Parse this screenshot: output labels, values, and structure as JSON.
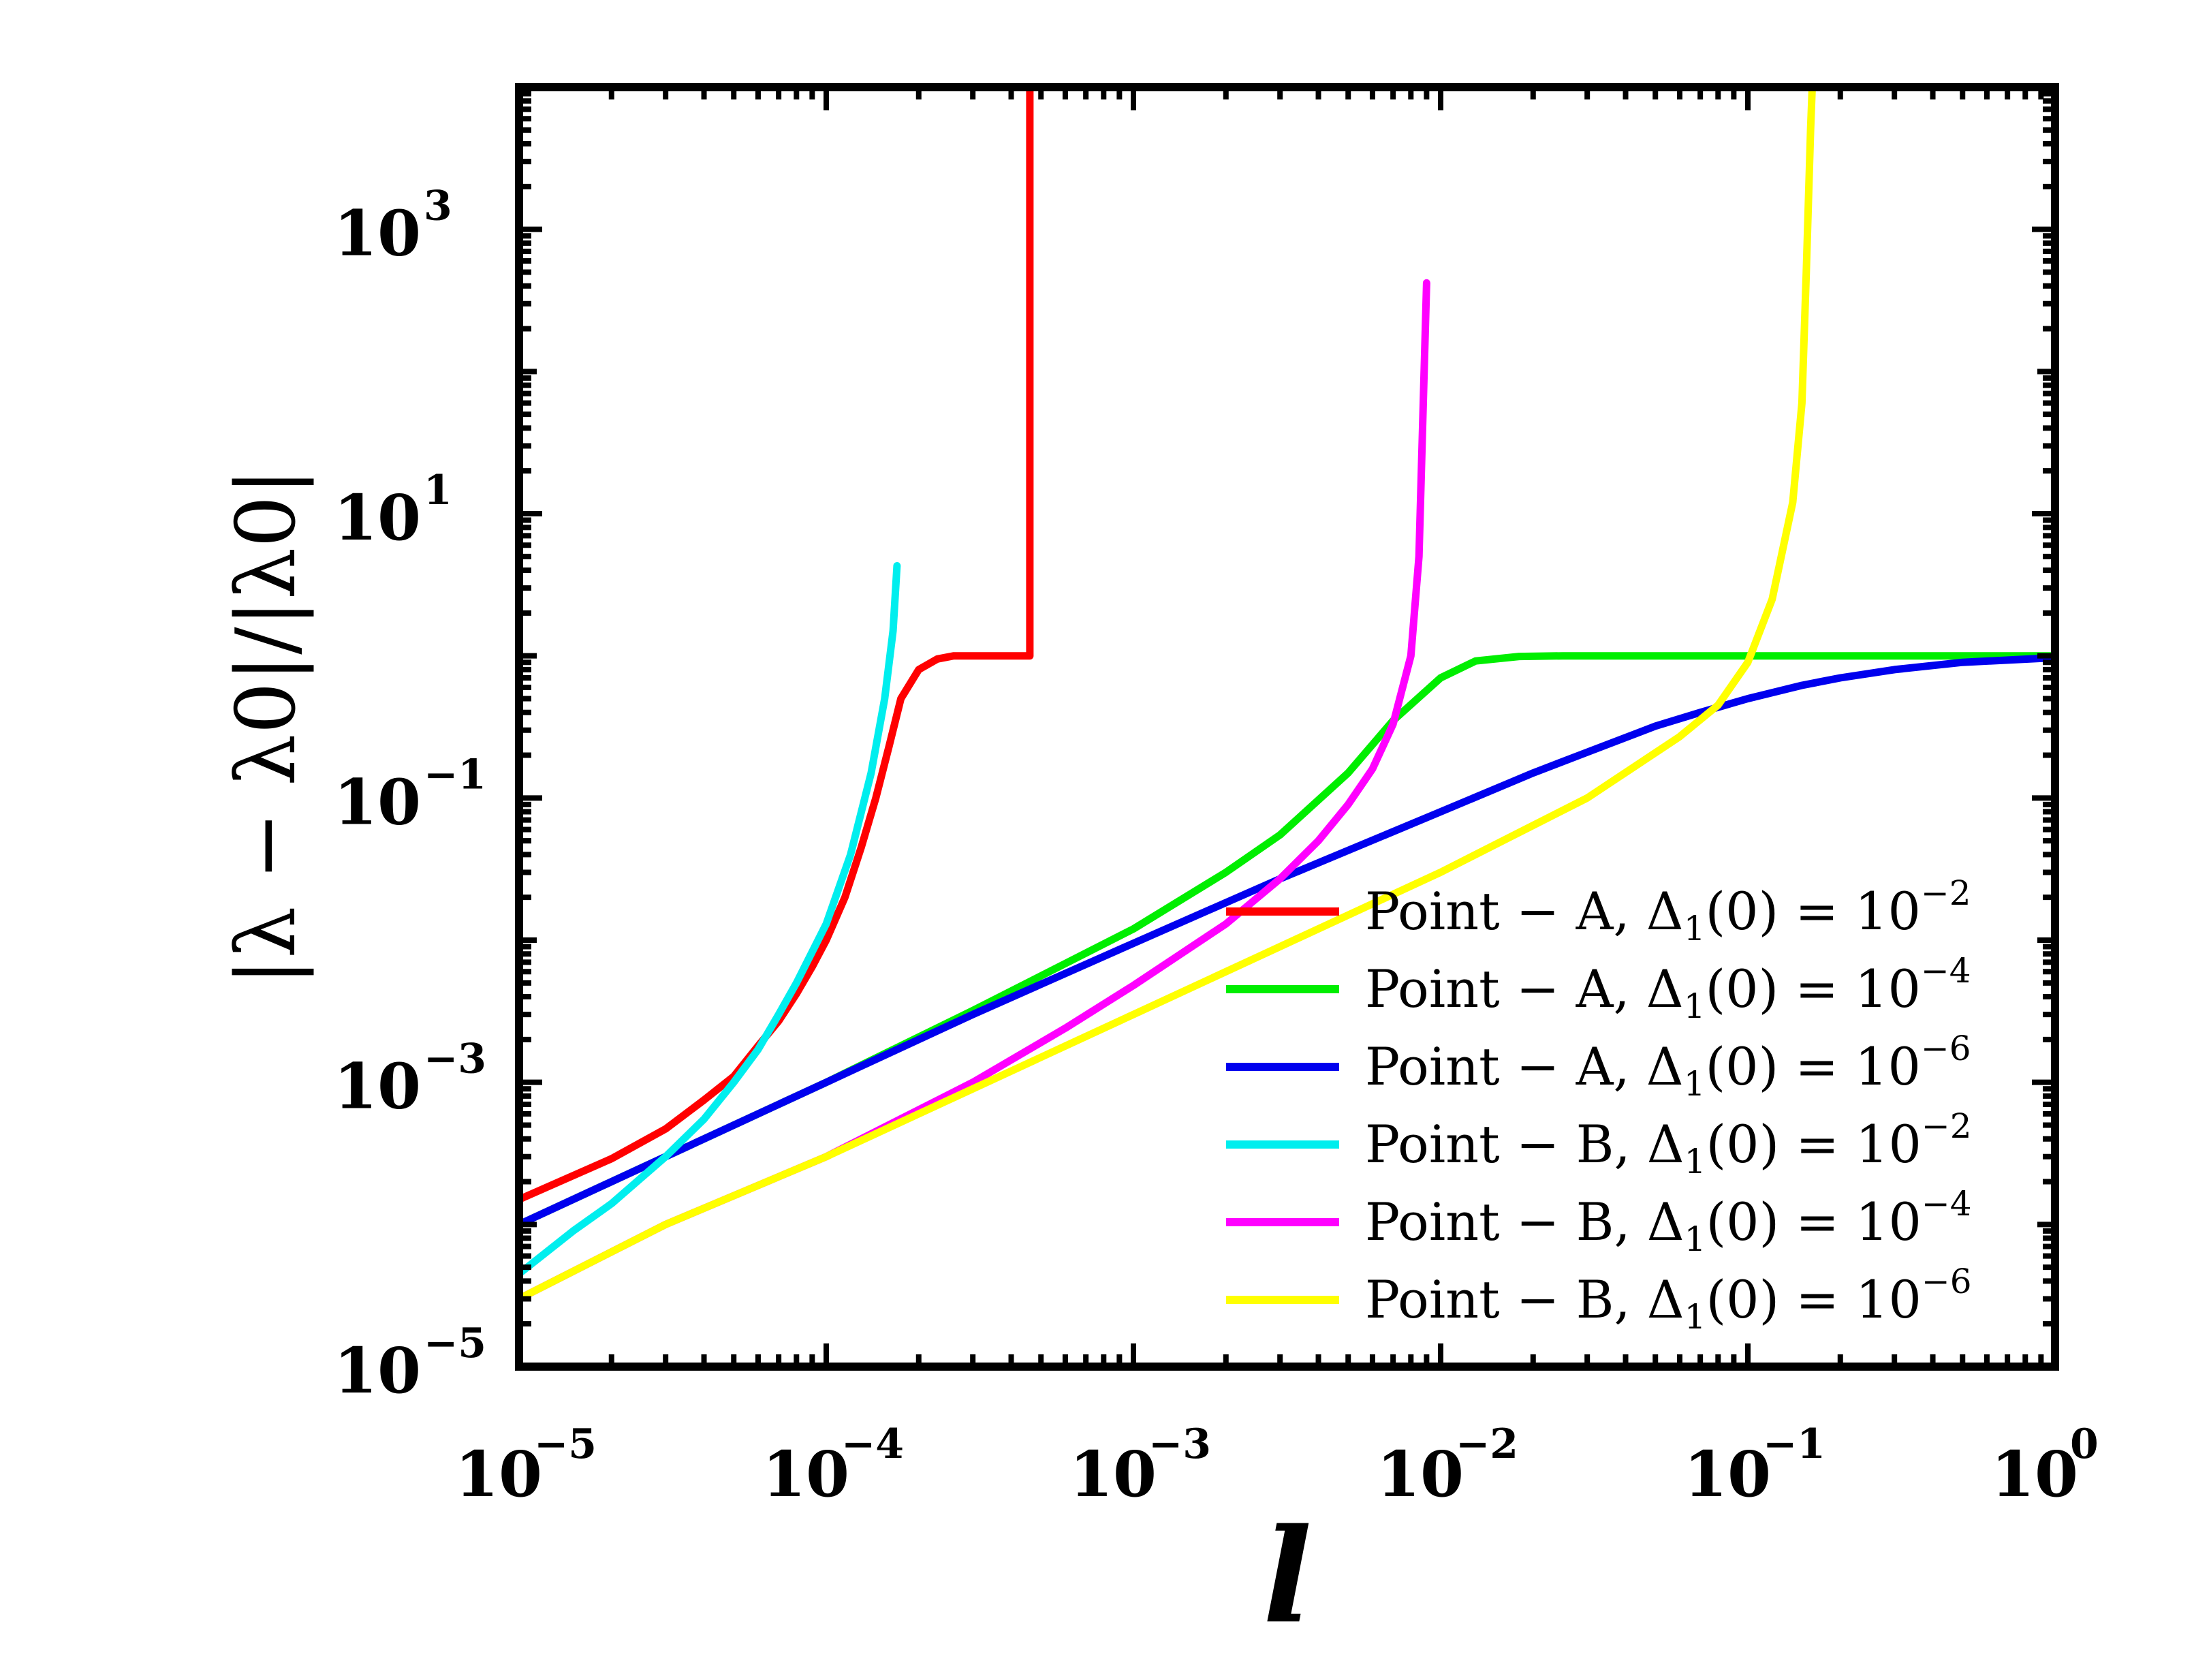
{
  "chart_data": {
    "type": "line",
    "xscale": "log",
    "yscale": "log",
    "xlim": [
      1e-05,
      1
    ],
    "ylim": [
      1e-05,
      10000
    ],
    "xlabel": "l",
    "ylabel": "|λ − λ0|/|λ0|",
    "xticks": [
      {
        "value": 1e-05,
        "base": "10",
        "exp": "−5"
      },
      {
        "value": 0.0001,
        "base": "10",
        "exp": "−4"
      },
      {
        "value": 0.001,
        "base": "10",
        "exp": "−3"
      },
      {
        "value": 0.01,
        "base": "10",
        "exp": "−2"
      },
      {
        "value": 0.1,
        "base": "10",
        "exp": "−1"
      },
      {
        "value": 1,
        "base": "10",
        "exp": "0"
      }
    ],
    "yticks": [
      {
        "value": 1e-05,
        "base": "10",
        "exp": "−5"
      },
      {
        "value": 0.001,
        "base": "10",
        "exp": "−3"
      },
      {
        "value": 0.1,
        "base": "10",
        "exp": "−1"
      },
      {
        "value": 10,
        "base": "10",
        "exp": "1"
      },
      {
        "value": 1000,
        "base": "10",
        "exp": "3"
      }
    ],
    "legend_position": "lower-right",
    "series": [
      {
        "name": "Point − A, Δ1(0) = 10−2",
        "label_main": "Point − A, Δ",
        "label_sub": "1",
        "label_rest": "(0) = 10",
        "label_exp": "−2",
        "color": "#ff0000",
        "x": [
          1e-05,
          2e-05,
          3e-05,
          4e-05,
          5e-05,
          6e-05,
          7e-05,
          8e-05,
          9e-05,
          0.0001,
          0.000115,
          0.00013,
          0.000145,
          0.00016,
          0.000175,
          0.0002,
          0.00023,
          0.00026,
          0.0003,
          0.00035,
          0.0004,
          0.00046,
          0.00046,
          0.00046,
          0.00047
        ],
        "y": [
          0.00015,
          0.00029,
          0.00047,
          0.00075,
          0.0011,
          0.0018,
          0.0027,
          0.0042,
          0.0065,
          0.01,
          0.02,
          0.045,
          0.1,
          0.23,
          0.5,
          0.8,
          0.95,
          1.0,
          1.0,
          1.0,
          1.0,
          1.0,
          1.0,
          10000,
          10000
        ]
      },
      {
        "name": "Point − A, Δ1(0) = 10−4",
        "label_main": "Point − A, Δ",
        "label_sub": "1",
        "label_rest": "(0) = 10",
        "label_exp": "−4",
        "color": "#00ee00",
        "x": [
          1e-05,
          3e-05,
          0.0001,
          0.0003,
          0.001,
          0.002,
          0.003,
          0.005,
          0.007,
          0.01,
          0.013,
          0.018,
          0.025,
          0.04,
          0.1,
          1
        ],
        "y": [
          0.0001,
          0.0003,
          0.001,
          0.0032,
          0.012,
          0.03,
          0.055,
          0.15,
          0.35,
          0.7,
          0.92,
          0.99,
          1.0,
          1.0,
          1.0,
          1.0
        ]
      },
      {
        "name": "Point − A, Δ1(0) = 10−6",
        "label_main": "Point − A, Δ",
        "label_sub": "1",
        "label_rest": "(0) = 10",
        "label_exp": "−6",
        "color": "#0000ee",
        "x": [
          1e-05,
          3e-05,
          0.0001,
          0.0003,
          0.001,
          0.003,
          0.01,
          0.02,
          0.03,
          0.05,
          0.07,
          0.1,
          0.15,
          0.2,
          0.3,
          0.5,
          1
        ],
        "y": [
          0.0001,
          0.0003,
          0.001,
          0.003,
          0.0095,
          0.027,
          0.08,
          0.15,
          0.21,
          0.32,
          0.4,
          0.5,
          0.62,
          0.7,
          0.8,
          0.9,
          0.97
        ]
      },
      {
        "name": "Point − B, Δ1(0) = 10−2",
        "label_main": "Point − B, Δ",
        "label_sub": "1",
        "label_rest": "(0) = 10",
        "label_exp": "−2",
        "color": "#00eeee",
        "x": [
          1e-05,
          1.5e-05,
          2e-05,
          3e-05,
          4e-05,
          5e-05,
          6e-05,
          7e-05,
          8e-05,
          0.0001,
          0.00012,
          0.00014,
          0.000155,
          0.000165,
          0.00017
        ],
        "y": [
          4.5e-05,
          9e-05,
          0.00014,
          0.0003,
          0.00055,
          0.001,
          0.0017,
          0.003,
          0.005,
          0.013,
          0.04,
          0.15,
          0.5,
          1.5,
          4.3
        ]
      },
      {
        "name": "Point − B, Δ1(0) = 10−4",
        "label_main": "Point − B, Δ",
        "label_sub": "1",
        "label_rest": "(0) = 10",
        "label_exp": "−4",
        "color": "#ff00ff",
        "x": [
          1e-05,
          3e-05,
          0.0001,
          0.0003,
          0.0006,
          0.001,
          0.002,
          0.003,
          0.004,
          0.005,
          0.006,
          0.007,
          0.008,
          0.0085,
          0.009
        ],
        "y": [
          3e-05,
          0.0001,
          0.0003,
          0.001,
          0.0024,
          0.0048,
          0.013,
          0.027,
          0.05,
          0.09,
          0.16,
          0.33,
          1.0,
          5.0,
          420
        ]
      },
      {
        "name": "Point − B, Δ1(0) = 10−6",
        "label_main": "Point − B, Δ",
        "label_sub": "1",
        "label_rest": "(0) = 10",
        "label_exp": "−6",
        "color": "#ffff00",
        "x": [
          1e-05,
          3e-05,
          0.0001,
          0.0003,
          0.001,
          0.003,
          0.01,
          0.03,
          0.06,
          0.08,
          0.1,
          0.12,
          0.14,
          0.15,
          0.155,
          0.16,
          0.162
        ],
        "y": [
          3e-05,
          0.0001,
          0.0003,
          0.0009,
          0.003,
          0.009,
          0.03,
          0.1,
          0.27,
          0.45,
          0.9,
          2.5,
          12,
          60,
          500,
          5000,
          10000
        ]
      }
    ]
  }
}
